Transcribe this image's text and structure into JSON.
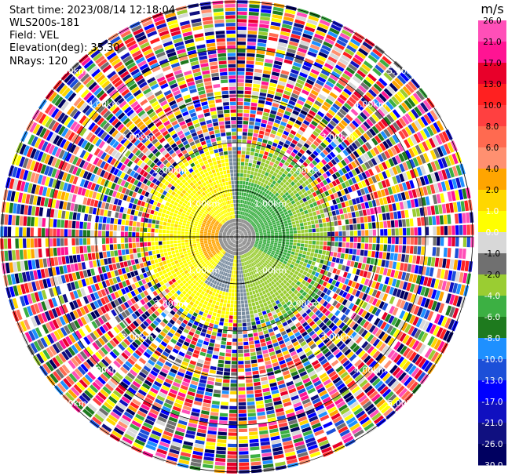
{
  "header": {
    "start_time_label": "Start time:",
    "start_time": "2023/08/14 12:18:04",
    "instrument": "WLS200s-181",
    "field_label": "Field:",
    "field": "VEL",
    "elevation_label": "Elevation(deg):",
    "elevation": "35.30",
    "nrays_label": "NRays:",
    "nrays": "120"
  },
  "chart_data": {
    "type": "heatmap",
    "projection": "polar-ppi",
    "field": "VEL",
    "units": "m/s",
    "n_rays": 120,
    "max_range_km": 5.0,
    "range_ring_labels": [
      "1.00km",
      "2.00km",
      "3.00km",
      "4.00km",
      "5.00km"
    ],
    "range_rings_km": [
      1,
      2,
      3,
      4,
      5
    ],
    "colorbar": {
      "label": "m/s",
      "ticks": [
        "26.0",
        "21.0",
        "17.0",
        "13.0",
        "10.0",
        "8.0",
        "6.0",
        "4.0",
        "2.0",
        "1.0",
        "0.0",
        "-1.0",
        "-2.0",
        "-4.0",
        "-6.0",
        "-8.0",
        "-10.0",
        "-13.0",
        "-17.0",
        "-21.0",
        "-26.0",
        "-30.0"
      ],
      "colors": [
        "#ff4fb8",
        "#ff1493",
        "#e8002a",
        "#ff2020",
        "#ff4040",
        "#ff6a50",
        "#ff9070",
        "#ffa500",
        "#ffd700",
        "#ffff00",
        "#d8d8d8",
        "#707070",
        "#9acd32",
        "#3cb043",
        "#1e7a1e",
        "#1e90ff",
        "#1c4fd8",
        "#0000ff",
        "#1010c0",
        "#101080",
        "#000060"
      ]
    },
    "description_regions": {
      "near_field_max_km": 2.1,
      "west_sector_speed_ms": 1.5,
      "east_sector_speed_ms": -4.0,
      "outer_region": "noisy"
    }
  }
}
